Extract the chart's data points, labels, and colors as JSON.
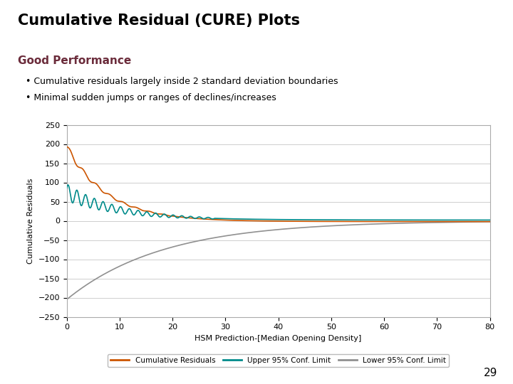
{
  "title": "Cumulative Residual (CURE) Plots",
  "subtitle": "Good Performance",
  "bullet1": "Cumulative residuals largely inside 2 standard deviation boundaries",
  "bullet2": "Minimal sudden jumps or ranges of declines/increases",
  "xlabel": "HSM Prediction-[Median Opening Density]",
  "ylabel": "Cumulative Residuals",
  "ylim": [
    -250,
    250
  ],
  "xlim": [
    0,
    80
  ],
  "yticks": [
    -250,
    -200,
    -150,
    -100,
    -50,
    0,
    50,
    100,
    150,
    200,
    250
  ],
  "xticks": [
    0,
    10,
    20,
    30,
    40,
    50,
    60,
    70,
    80
  ],
  "color_cumres": "#CC5500",
  "color_upper": "#008B8B",
  "color_lower": "#909090",
  "title_color": "#000000",
  "subtitle_color": "#6B2C3B",
  "page_number": "29",
  "legend_labels": [
    "Cumulative Residuals",
    "Upper 95% Conf. Limit",
    "Lower 95% Conf. Limit"
  ],
  "background_color": "#FFFFFF"
}
